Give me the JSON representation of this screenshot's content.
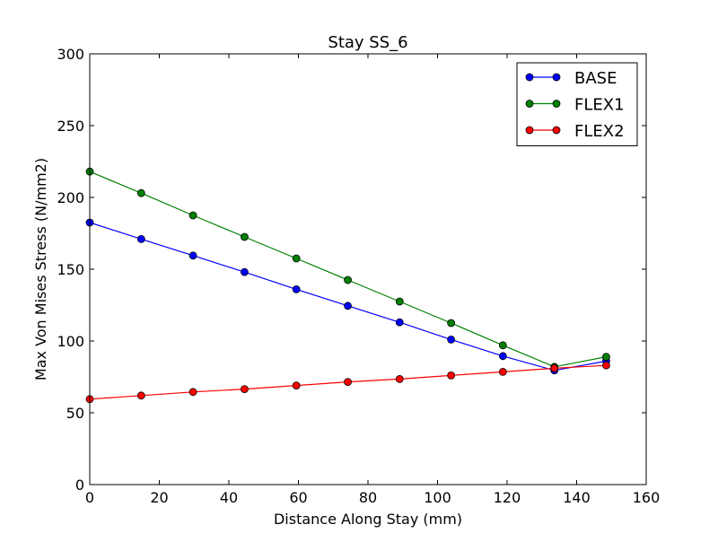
{
  "chart_data": {
    "type": "line",
    "title": "Stay SS_6",
    "xlabel": "Distance Along Stay (mm)",
    "ylabel": "Max Von Mises Stress (N/mm2)",
    "xlim": [
      0,
      160
    ],
    "ylim": [
      0,
      300
    ],
    "xticks": [
      0,
      20,
      40,
      60,
      80,
      100,
      120,
      140,
      160
    ],
    "yticks": [
      0,
      50,
      100,
      150,
      200,
      250,
      300
    ],
    "grid": false,
    "legend_position": "top-right",
    "x": [
      0,
      14.8,
      29.7,
      44.5,
      59.4,
      74.2,
      89.1,
      103.9,
      118.8,
      133.6,
      148.5
    ],
    "series": [
      {
        "name": "BASE",
        "color": "#0000ff",
        "values": [
          182.5,
          171,
          159.5,
          148,
          136,
          124.5,
          113,
          101,
          89.5,
          79.5,
          86
        ]
      },
      {
        "name": "FLEX1",
        "color": "#008000",
        "values": [
          218,
          203,
          187.5,
          172.5,
          157.5,
          142.5,
          127.5,
          112.5,
          97,
          82,
          89
        ]
      },
      {
        "name": "FLEX2",
        "color": "#ff0000",
        "values": [
          59.5,
          62,
          64.5,
          66.5,
          69,
          71.5,
          73.5,
          76,
          78.5,
          81,
          83
        ]
      }
    ]
  }
}
